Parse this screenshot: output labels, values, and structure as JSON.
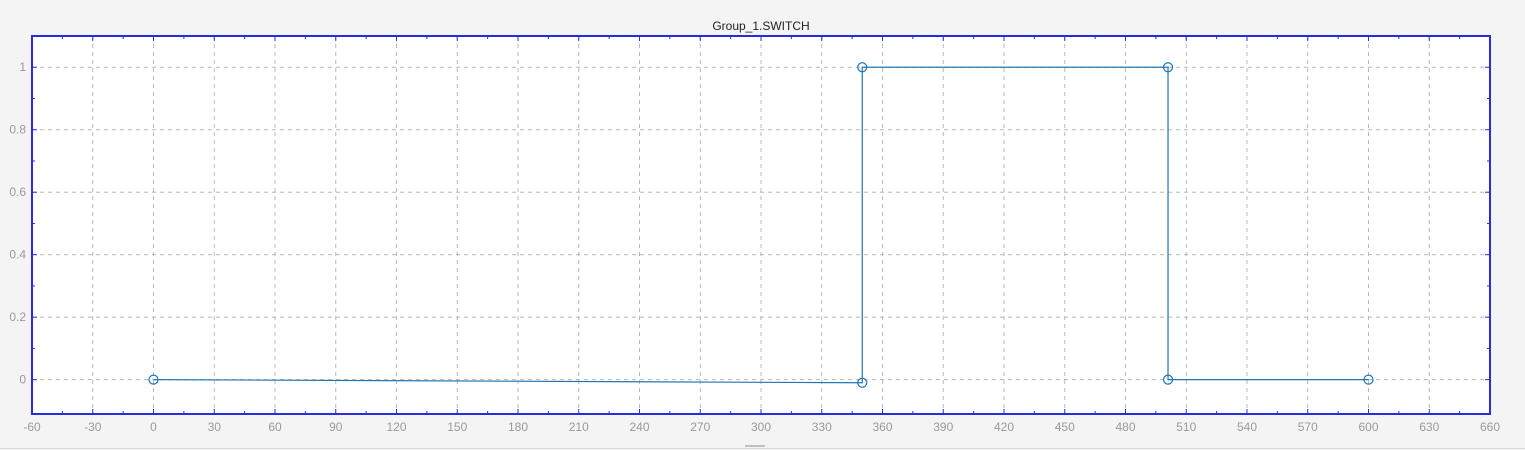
{
  "chart_data": {
    "type": "line",
    "title": "Group_1.SWITCH",
    "xlabel": "",
    "ylabel": "",
    "xlim": [
      -60,
      660
    ],
    "ylim": [
      -0.11,
      1.1
    ],
    "xticks": [
      -60,
      -30,
      0,
      30,
      60,
      90,
      120,
      150,
      180,
      210,
      240,
      270,
      300,
      330,
      360,
      390,
      420,
      450,
      480,
      510,
      540,
      570,
      600,
      630,
      660
    ],
    "yticks": [
      0,
      0.2,
      0.4,
      0.6,
      0.8,
      1
    ],
    "ytick_labels": [
      "0",
      "0.2",
      "0.4",
      "0.6",
      "0.8",
      "1"
    ],
    "grid": true,
    "legend": "none",
    "series": [
      {
        "x": [
          0,
          350,
          350,
          501,
          501,
          600
        ],
        "y": [
          0,
          -0.01,
          1,
          1,
          0,
          0
        ],
        "marker": "circle",
        "color": "#1f77b4"
      }
    ],
    "colors": {
      "line": "#1f77b4",
      "frame": "#2a2ae0",
      "grid": "#b8b8b8",
      "tick_text": "#9a9a9a",
      "background": "#ffffff",
      "page": "#f4f4f4"
    }
  }
}
